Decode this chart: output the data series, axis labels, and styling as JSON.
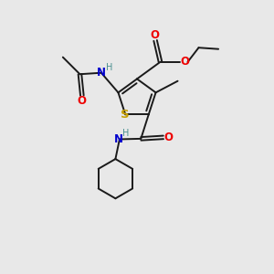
{
  "bg_color": "#e8e8e8",
  "bond_color": "#1a1a1a",
  "S_color": "#c8a000",
  "N_color": "#0000cd",
  "O_color": "#ee0000",
  "H_color": "#4a9090",
  "font_size": 8.5,
  "line_width": 1.4,
  "figsize": [
    3.0,
    3.0
  ],
  "dpi": 100,
  "xlim": [
    0,
    10
  ],
  "ylim": [
    0,
    10
  ]
}
